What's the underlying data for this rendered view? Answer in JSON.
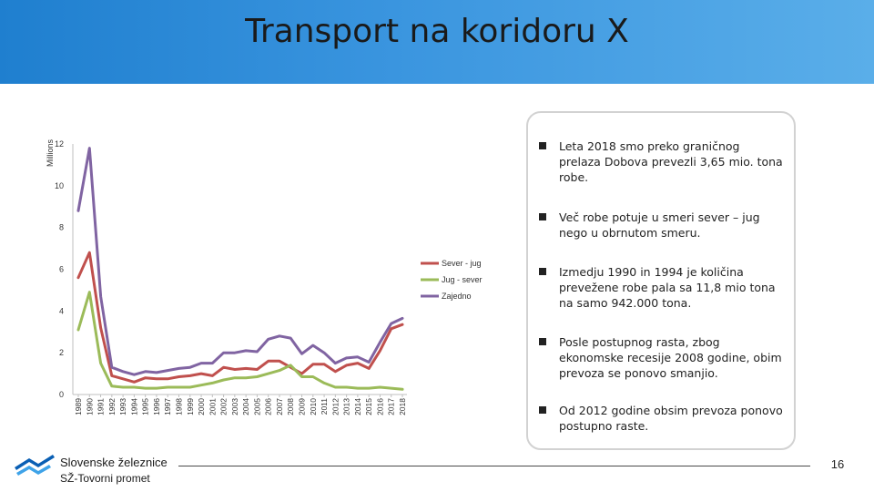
{
  "header": {
    "title": "Transport na koridoru X"
  },
  "chart_data": {
    "type": "line",
    "title": "",
    "xlabel": "",
    "ylabel": "Millions",
    "ylim": [
      0,
      12
    ],
    "y_ticks": [
      "0",
      "2",
      "4",
      "6",
      "8",
      "10",
      "12"
    ],
    "grid": "off",
    "legend_position": "right",
    "categories": [
      "1989",
      "1990",
      "1991",
      "1992",
      "1993",
      "1994",
      "1995",
      "1996",
      "1997",
      "1998",
      "1999",
      "2000",
      "2001",
      "2002",
      "2003",
      "2004",
      "2005",
      "2006",
      "2007",
      "2008",
      "2009",
      "2010",
      "2011",
      "2012",
      "2013",
      "2014",
      "2015",
      "2016",
      "2017",
      "2018"
    ],
    "series": [
      {
        "name": "Sever - jug",
        "color": "#c0504d",
        "values": [
          5.6,
          6.8,
          3.2,
          0.9,
          0.75,
          0.6,
          0.8,
          0.75,
          0.75,
          0.85,
          0.9,
          1.0,
          0.9,
          1.3,
          1.2,
          1.25,
          1.2,
          1.6,
          1.6,
          1.3,
          1.0,
          1.45,
          1.45,
          1.1,
          1.4,
          1.5,
          1.25,
          2.1,
          3.15,
          3.35
        ]
      },
      {
        "name": "Jug - sever",
        "color": "#9bbb59",
        "values": [
          3.1,
          4.9,
          1.5,
          0.4,
          0.35,
          0.35,
          0.3,
          0.3,
          0.35,
          0.35,
          0.35,
          0.45,
          0.55,
          0.7,
          0.8,
          0.8,
          0.85,
          1.0,
          1.15,
          1.4,
          0.85,
          0.85,
          0.55,
          0.35,
          0.35,
          0.3,
          0.3,
          0.35,
          0.3,
          0.25
        ]
      },
      {
        "name": "Zajedno",
        "color": "#8064a2",
        "values": [
          8.8,
          11.8,
          4.7,
          1.3,
          1.1,
          0.95,
          1.1,
          1.05,
          1.15,
          1.25,
          1.3,
          1.5,
          1.5,
          2.0,
          2.0,
          2.1,
          2.05,
          2.65,
          2.8,
          2.7,
          1.95,
          2.35,
          2.0,
          1.5,
          1.75,
          1.8,
          1.55,
          2.5,
          3.4,
          3.65
        ]
      }
    ]
  },
  "bullets": [
    "Leta 2018 smo preko graničnog prelaza Dobova prevezli 3,65 mio. tona robe.",
    "Več robe potuje u smeri sever – jug nego u obrnutom smeru.",
    "Izmedju 1990 in 1994 je količina prevežene robe pala sa 11,8 mio tona na samo 942.000 tona.",
    "Posle postupnog rasta, zbog ekonomske recesije 2008 godine, obim prevoza se ponovo smanjio.",
    "Od 2012 godine obsim prevoza ponovo postupno raste."
  ],
  "footer": {
    "logo_name": "Slovenske železnice",
    "logo_sub": "SŽ-Tovorni promet",
    "page_number": "16",
    "logo_colors": [
      "#0a5fb4",
      "#3fa3e8"
    ]
  }
}
